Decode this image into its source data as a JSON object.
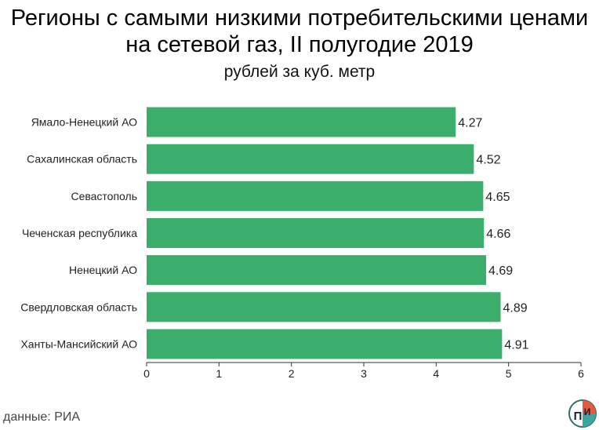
{
  "title": "Регионы с самыми низкими потребительскими ценами на сетевой газ, II полугодие 2019",
  "subtitle": "рублей за куб. метр",
  "source": "данные: РИА",
  "logo_text": "П И",
  "colors": {
    "bar": "#3cae6c",
    "axis": "#333333",
    "text": "#222222"
  },
  "chart_data": {
    "type": "bar",
    "orientation": "horizontal",
    "title": "Регионы с самыми низкими потребительскими ценами на сетевой газ, II полугодие 2019",
    "subtitle": "рублей за куб. метр",
    "categories": [
      "Ямало-Ненецкий АО",
      "Сахалинская область",
      "Севастополь",
      "Чеченская республика",
      "Ненецкий АО",
      "Свердловская область",
      "Ханты-Мансийский АО"
    ],
    "values": [
      4.27,
      4.52,
      4.65,
      4.66,
      4.69,
      4.89,
      4.91
    ],
    "value_labels": [
      "4.27",
      "4.52",
      "4.65",
      "4.66",
      "4.69",
      "4.89",
      "4.91"
    ],
    "xlim": [
      0,
      6
    ],
    "xticks": [
      "0",
      "1",
      "2",
      "3",
      "4",
      "5",
      "6"
    ],
    "grid": false,
    "legend": "none"
  }
}
